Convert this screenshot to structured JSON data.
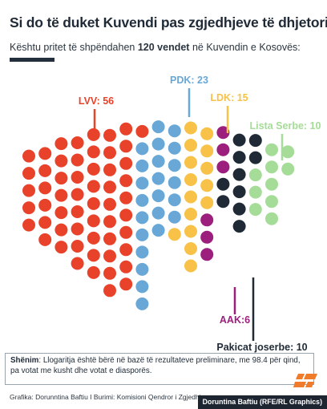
{
  "header": {
    "title": "Si do të duket Kuvendi pas zgjedhjeve të dhjetorit?",
    "subtitle_pre": "Kështu pritet të shpëndahen ",
    "subtitle_bold": "120 vendet",
    "subtitle_post": " në Kuvendin e Kosovës:"
  },
  "chart_data": {
    "type": "parliament",
    "total_seats": 120,
    "series": [
      {
        "name": "LVV",
        "label": "LVV: 56",
        "seats": 56,
        "color": "#e8432a"
      },
      {
        "name": "PDK",
        "label": "PDK: 23",
        "seats": 23,
        "color": "#69a8d6"
      },
      {
        "name": "LDK",
        "label": "LDK: 15",
        "seats": 15,
        "color": "#f7c247"
      },
      {
        "name": "AAK",
        "label": "AAK:6",
        "seats": 6,
        "color": "#9c1f7e"
      },
      {
        "name": "Pakicat joserbe",
        "label": "Pakicat joserbe: 10",
        "seats": 10,
        "color": "#1f2a36"
      },
      {
        "name": "Lista Serbe",
        "label": "Lista Serbe: 10",
        "seats": 10,
        "color": "#a5dc98"
      }
    ]
  },
  "note": {
    "label": "Shënim",
    "text": ": Llogaritja është bërë në bazë të rezultateve preliminare, me 98.4 për qind, pa votat me kusht dhe votat e diasporës."
  },
  "credits": "Grafika: Dorunntina Baftiu I Burimi: Komisioni Qendror i Zgjedhjeve",
  "author": "Doruntina Baftiu (RFE/RL Graphics)",
  "colors": {
    "accent": "#232f3c",
    "logo": "#f07b2a"
  }
}
